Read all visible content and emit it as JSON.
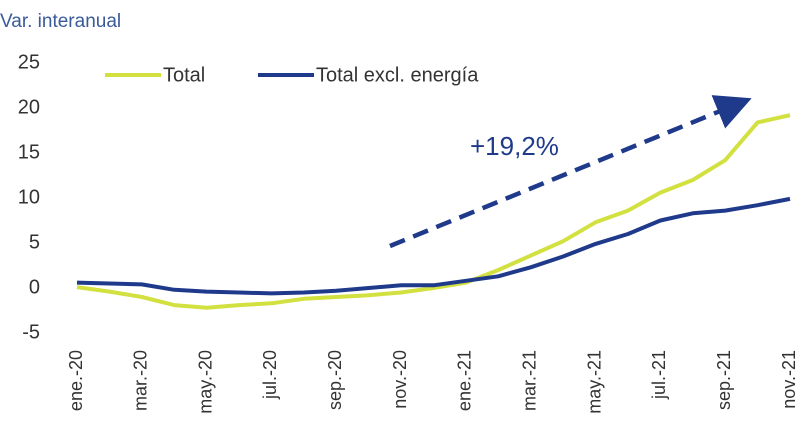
{
  "chart_data": {
    "type": "line",
    "y_axis_label": "Var. interanual",
    "annotation": "+19,2%",
    "categories": [
      "ene.-20",
      null,
      "mar.-20",
      null,
      "may.-20",
      null,
      "jul.-20",
      null,
      "sep.-20",
      null,
      "nov.-20",
      null,
      "ene.-21",
      null,
      "mar.-21",
      null,
      "may.-21",
      null,
      "jul.-21",
      null,
      "sep.-21",
      null,
      "nov.-21"
    ],
    "series": [
      {
        "name": "Total",
        "color": "#d2e040",
        "values": [
          0.1,
          -0.4,
          -1.0,
          -1.9,
          -2.2,
          -1.9,
          -1.7,
          -1.2,
          -1.0,
          -0.8,
          -0.5,
          0.0,
          0.6,
          2.0,
          3.6,
          5.2,
          7.3,
          8.6,
          10.6,
          12.0,
          14.2,
          18.4,
          19.2
        ]
      },
      {
        "name": "Total excl. energía",
        "color": "#1f3a8a",
        "values": [
          0.6,
          0.5,
          0.4,
          -0.2,
          -0.4,
          -0.5,
          -0.6,
          -0.5,
          -0.3,
          0.0,
          0.3,
          0.3,
          0.8,
          1.3,
          2.3,
          3.5,
          4.9,
          6.0,
          7.5,
          8.3,
          8.6,
          9.2,
          9.9
        ]
      }
    ],
    "ylim": [
      -5,
      25
    ],
    "yticks": [
      -5,
      0,
      5,
      10,
      15,
      20,
      25
    ],
    "grid": false
  }
}
